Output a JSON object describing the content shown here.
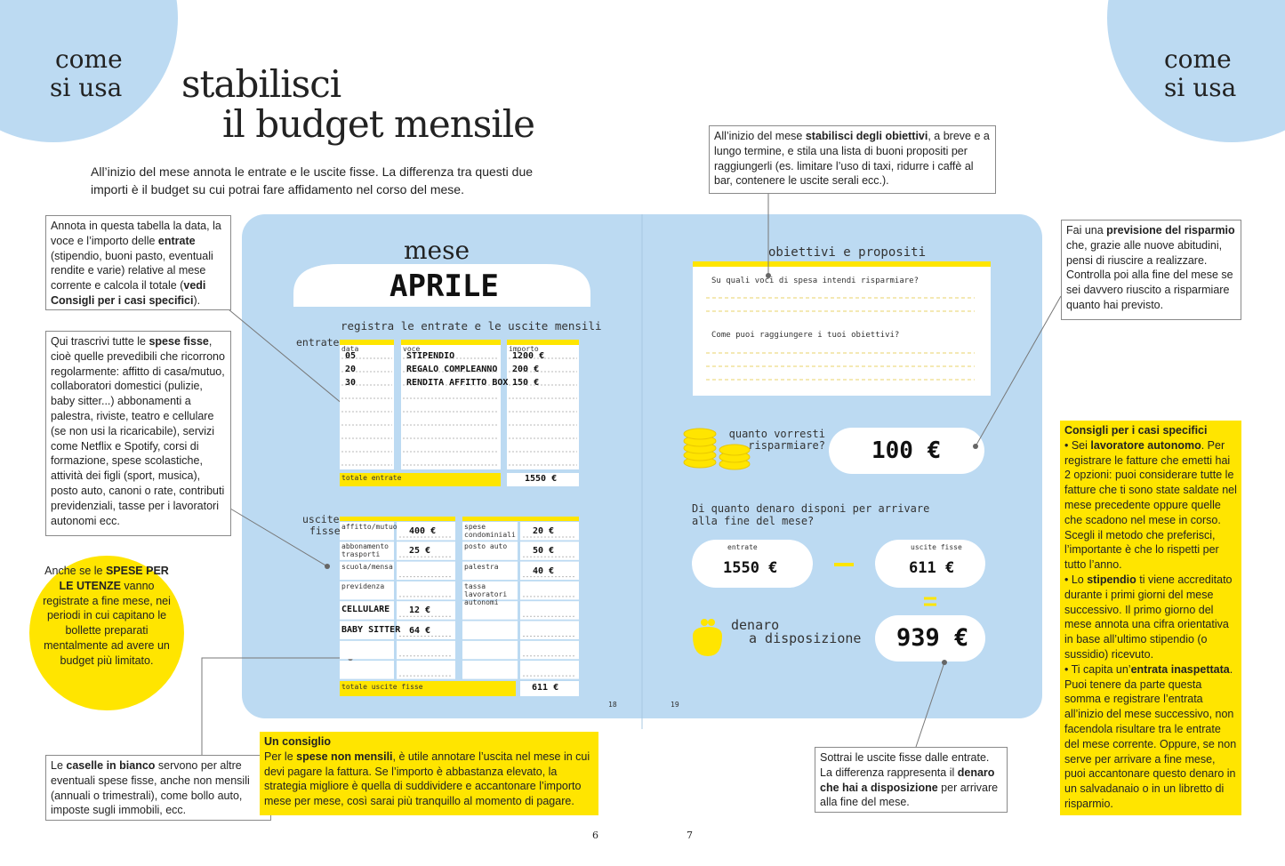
{
  "corners": {
    "left": [
      "come",
      "si usa"
    ],
    "right": [
      "come",
      "si usa"
    ]
  },
  "title": [
    "stabilisci",
    "il budget mensile"
  ],
  "intro": "All’inizio del mese annota le entrate e le uscite fisse. La differenza tra questi due importi è il budget su cui potrai fare affidamento nel corso del mese.",
  "callouts": {
    "income": [
      {
        "t": "Annota in questa tabella la data, la voce e l’importo delle "
      },
      {
        "t": "entrate",
        "b": true
      },
      {
        "t": " (stipendio, buoni pasto, eventuali rendite e varie) relative al mese corrente e calcola il totale ("
      },
      {
        "t": "vedi Consigli per i casi specifici",
        "b": true
      },
      {
        "t": ")."
      }
    ],
    "fixed": [
      {
        "t": "Qui trascrivi tutte le "
      },
      {
        "t": "spese fisse",
        "b": true
      },
      {
        "t": ", cioè quelle prevedibili che ricorrono regolarmente: affitto di casa/mutuo, collaboratori domestici (pulizie, baby sitter...) abbonamenti a palestra, riviste, teatro e cellulare (se non usi la ricaricabile), servizi come Netflix e Spotify, corsi di formazione, spese scolastiche, attività dei figli (sport, musica), posto auto, canoni o rate, contributi previdenziali, tasse per i lavoratori autonomi ecc."
      }
    ],
    "utilities": [
      {
        "t": "Anche se le "
      },
      {
        "t": "SPESE PER LE UTENZE",
        "b": true
      },
      {
        "t": " vanno registrate a fine mese, nei periodi in cui capitano le bollette preparati mentalmente ad avere un budget più limitato."
      }
    ],
    "blank": [
      {
        "t": "Le "
      },
      {
        "t": "caselle in bianco",
        "b": true
      },
      {
        "t": " servono per altre eventuali spese fisse, anche non mensili (annuali o trimestrali), come bollo auto, imposte sugli immobili, ecc."
      }
    ],
    "tip_title": "Un consiglio",
    "tip": [
      {
        "t": "Per le "
      },
      {
        "t": "spese non mensili",
        "b": true
      },
      {
        "t": ", è utile annotare l’uscita nel mese in cui devi pagare la fattura. Se l’importo è abbastanza elevato, la strategia migliore è quella di suddividere e accantonare l’importo mese per mese, così sarai più tranquillo al momento di pagare."
      }
    ],
    "goals": [
      {
        "t": "All’inizio del mese "
      },
      {
        "t": "stabilisci degli obiettivi",
        "b": true
      },
      {
        "t": ", a breve e a lungo termine, e stila una lista di buoni propositi per raggiungerli (es. limitare l’uso di taxi, ridurre i caffè al bar, contenere le uscite serali ecc.)."
      }
    ],
    "forecast": [
      {
        "t": "Fai una "
      },
      {
        "t": "previsione del risparmio",
        "b": true
      },
      {
        "t": " che, grazie alle nuove abitudini, pensi di riuscire a realizzare. Controlla poi alla fine del mese se sei davvero riuscito a risparmiare quanto hai previsto."
      }
    ],
    "cases_title": "Consigli per i casi specifici",
    "cases": [
      [
        {
          "t": "• Sei "
        },
        {
          "t": "lavoratore autonomo",
          "b": true
        },
        {
          "t": ". Per registrare le fatture che emetti hai 2 opzioni: puoi considerare tutte le fatture che ti sono state saldate nel mese precedente oppure quelle che scadono nel mese in corso. Scegli il metodo che preferisci, l’importante è che lo rispetti per tutto l’anno."
        }
      ],
      [
        {
          "t": "• Lo "
        },
        {
          "t": "stipendio",
          "b": true
        },
        {
          "t": " ti viene accreditato durante i primi giorni del mese successivo. Il primo giorno del mese annota una cifra orientativa in base all’ultimo stipendio (o sussidio) ricevuto."
        }
      ],
      [
        {
          "t": "• Ti capita un’"
        },
        {
          "t": "entrata inaspettata",
          "b": true
        },
        {
          "t": ". Puoi tenere da parte questa somma e registrare l’entrata all’inizio del mese successivo, non facendola risultare tra le entrate del mese corrente. Oppure, se non serve per arrivare a fine mese, puoi accantonare questo denaro in un salvadanaio o in un libretto di risparmio."
        }
      ]
    ],
    "subtract": [
      {
        "t": "Sottrai le uscite fisse dalle entrate. La differenza rappresenta il "
      },
      {
        "t": "denaro che hai a disposizione",
        "b": true
      },
      {
        "t": " per arrivare alla fine del mese."
      }
    ]
  },
  "planner": {
    "month_label": "mese",
    "month": "APRILE",
    "subtitle": "registra le entrate e le uscite mensili",
    "income_label": "entrate",
    "income_headers": [
      "data",
      "voce",
      "importo"
    ],
    "income_rows": [
      [
        "05",
        "STIPENDIO",
        "1200 €"
      ],
      [
        "20",
        "REGALO COMPLEANNO",
        "200 €"
      ],
      [
        "30",
        "RENDITA AFFITTO BOX",
        "150 €"
      ]
    ],
    "income_total_label": "totale entrate",
    "income_total": "1550 €",
    "expense_label": [
      "uscite",
      "fisse"
    ],
    "expenses_left": [
      {
        "label": "affitto/mutuo",
        "amount": "400 €"
      },
      {
        "label": "abbonamento trasporti",
        "amount": "25 €"
      },
      {
        "label": "scuola/mensa"
      },
      {
        "label": "previdenza"
      },
      {
        "label": "CELLULARE",
        "amount": "12 €"
      },
      {
        "label": "BABY SITTER",
        "amount": "64 €"
      }
    ],
    "expenses_right": [
      {
        "label": "spese condominiali",
        "amount": "20 €"
      },
      {
        "label": "posto auto",
        "amount": "50 €"
      },
      {
        "label": "palestra",
        "amount": "40 €"
      },
      {
        "label": "tassa lavoratori autonomi"
      }
    ],
    "expense_total_label": "totale uscite fisse",
    "expense_total": "611 €",
    "goals_title": "obiettivi e propositi",
    "questions": [
      "Su quali voci di spesa intendi risparmiare?",
      "Come puoi raggiungere i tuoi obiettivi?"
    ],
    "save_label": [
      "quanto vorresti",
      "risparmiare?"
    ],
    "save_amount": "100 €",
    "available_question": "Di quanto denaro disponi per arrivare alla fine del mese?",
    "sum_income_label": "entrate",
    "sum_income": "1550 €",
    "sum_expense_label": "uscite fisse",
    "sum_expense": "611 €",
    "available_label": [
      "denaro",
      "a disposizione"
    ],
    "available": "939 €",
    "page_numbers": [
      "18",
      "19"
    ]
  },
  "page_numbers": [
    "6",
    "7"
  ]
}
